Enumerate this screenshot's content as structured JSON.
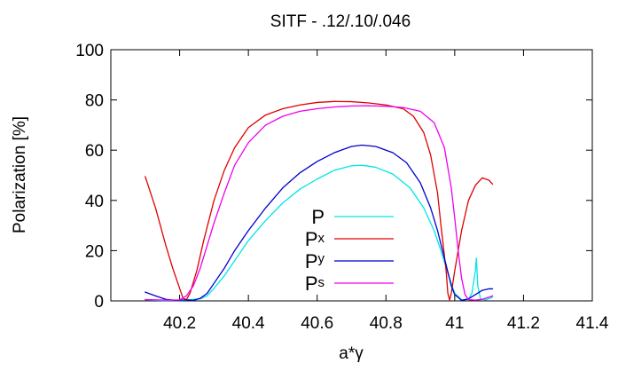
{
  "chart_data": {
    "type": "line",
    "title": "SITF - .12/.10/.046",
    "xlabel": "a*γ",
    "ylabel": "Polarization [%]",
    "xlim": [
      40.0,
      41.4
    ],
    "ylim": [
      0,
      100
    ],
    "x_ticks": [
      40.2,
      40.4,
      40.6,
      40.8,
      41,
      41.2,
      41.4
    ],
    "x_tick_labels": [
      "40.2",
      "40.4",
      "40.6",
      "40.8",
      "41",
      "41.2",
      "41.4"
    ],
    "y_ticks": [
      0,
      20,
      40,
      60,
      80,
      100
    ],
    "y_tick_labels": [
      "0",
      "20",
      "40",
      "60",
      "80",
      "100"
    ],
    "grid": false,
    "legend_position": "center",
    "series": [
      {
        "name": "P",
        "name_base": "P",
        "name_sub": "",
        "color": "#00e5e5",
        "points": [
          [
            40.1,
            0.4
          ],
          [
            40.12,
            0.3
          ],
          [
            40.15,
            0.2
          ],
          [
            40.18,
            0.2
          ],
          [
            40.21,
            0.2
          ],
          [
            40.24,
            0.6
          ],
          [
            40.26,
            0.8
          ],
          [
            40.28,
            2.0
          ],
          [
            40.3,
            5.0
          ],
          [
            40.33,
            10.0
          ],
          [
            40.36,
            16.0
          ],
          [
            40.4,
            24.0
          ],
          [
            40.45,
            32.0
          ],
          [
            40.5,
            39.0
          ],
          [
            40.55,
            44.5
          ],
          [
            40.6,
            48.5
          ],
          [
            40.65,
            52.0
          ],
          [
            40.7,
            53.8
          ],
          [
            40.73,
            54.0
          ],
          [
            40.77,
            53.2
          ],
          [
            40.82,
            50.5
          ],
          [
            40.87,
            45.0
          ],
          [
            40.91,
            37.0
          ],
          [
            40.94,
            28.0
          ],
          [
            40.96,
            20.0
          ],
          [
            40.98,
            11.0
          ],
          [
            41.0,
            3.0
          ],
          [
            41.02,
            0.4
          ],
          [
            41.04,
            0.6
          ],
          [
            41.05,
            3.0
          ],
          [
            41.06,
            12.0
          ],
          [
            41.063,
            17.0
          ],
          [
            41.067,
            6.0
          ],
          [
            41.075,
            0.8
          ],
          [
            41.09,
            0.4
          ],
          [
            41.11,
            1.5
          ]
        ]
      },
      {
        "name": "Px",
        "name_base": "P",
        "name_sub": "x",
        "color": "#e00000",
        "points": [
          [
            40.1,
            49.5
          ],
          [
            40.13,
            37.0
          ],
          [
            40.16,
            22.0
          ],
          [
            40.18,
            13.0
          ],
          [
            40.2,
            5.0
          ],
          [
            40.21,
            1.0
          ],
          [
            40.22,
            0.5
          ],
          [
            40.23,
            3.0
          ],
          [
            40.25,
            12.0
          ],
          [
            40.27,
            24.0
          ],
          [
            40.3,
            40.0
          ],
          [
            40.33,
            52.0
          ],
          [
            40.36,
            61.0
          ],
          [
            40.4,
            69.0
          ],
          [
            40.45,
            74.0
          ],
          [
            40.5,
            76.5
          ],
          [
            40.55,
            78.0
          ],
          [
            40.6,
            79.0
          ],
          [
            40.65,
            79.4
          ],
          [
            40.7,
            79.3
          ],
          [
            40.75,
            78.8
          ],
          [
            40.8,
            78.0
          ],
          [
            40.85,
            76.5
          ],
          [
            40.88,
            73.5
          ],
          [
            40.91,
            67.0
          ],
          [
            40.93,
            58.0
          ],
          [
            40.95,
            43.0
          ],
          [
            40.96,
            30.0
          ],
          [
            40.975,
            12.0
          ],
          [
            40.98,
            3.0
          ],
          [
            40.985,
            0.3
          ],
          [
            40.99,
            3.0
          ],
          [
            41.0,
            12.0
          ],
          [
            41.02,
            28.0
          ],
          [
            41.04,
            40.0
          ],
          [
            41.06,
            46.0
          ],
          [
            41.08,
            49.0
          ],
          [
            41.1,
            48.0
          ],
          [
            41.11,
            46.5
          ]
        ]
      },
      {
        "name": "Py",
        "name_base": "P",
        "name_sub": "y",
        "color": "#0000cc",
        "points": [
          [
            40.1,
            3.5
          ],
          [
            40.13,
            2.0
          ],
          [
            40.16,
            0.6
          ],
          [
            40.19,
            0.2
          ],
          [
            40.22,
            0.4
          ],
          [
            40.24,
            0.2
          ],
          [
            40.26,
            1.0
          ],
          [
            40.28,
            3.0
          ],
          [
            40.3,
            7.0
          ],
          [
            40.33,
            13.0
          ],
          [
            40.36,
            20.0
          ],
          [
            40.4,
            28.0
          ],
          [
            40.45,
            37.0
          ],
          [
            40.5,
            45.0
          ],
          [
            40.55,
            51.0
          ],
          [
            40.6,
            55.5
          ],
          [
            40.65,
            59.0
          ],
          [
            40.7,
            61.5
          ],
          [
            40.73,
            62.0
          ],
          [
            40.77,
            61.5
          ],
          [
            40.82,
            59.0
          ],
          [
            40.86,
            55.0
          ],
          [
            40.9,
            47.0
          ],
          [
            40.93,
            37.0
          ],
          [
            40.95,
            28.0
          ],
          [
            40.97,
            17.0
          ],
          [
            40.99,
            6.0
          ],
          [
            41.0,
            2.5
          ],
          [
            41.02,
            0.2
          ],
          [
            41.04,
            0.8
          ],
          [
            41.06,
            2.5
          ],
          [
            41.08,
            4.2
          ],
          [
            41.1,
            4.8
          ],
          [
            41.11,
            4.8
          ]
        ]
      },
      {
        "name": "Ps",
        "name_base": "P",
        "name_sub": "s",
        "color": "#ee00ee",
        "points": [
          [
            40.1,
            0.5
          ],
          [
            40.14,
            0.4
          ],
          [
            40.17,
            0.3
          ],
          [
            40.2,
            0.4
          ],
          [
            40.22,
            2.0
          ],
          [
            40.24,
            6.0
          ],
          [
            40.26,
            13.0
          ],
          [
            40.28,
            22.0
          ],
          [
            40.3,
            31.0
          ],
          [
            40.33,
            43.0
          ],
          [
            40.36,
            54.0
          ],
          [
            40.4,
            63.0
          ],
          [
            40.45,
            70.0
          ],
          [
            40.5,
            73.5
          ],
          [
            40.55,
            75.5
          ],
          [
            40.6,
            76.5
          ],
          [
            40.65,
            77.2
          ],
          [
            40.7,
            77.6
          ],
          [
            40.75,
            77.7
          ],
          [
            40.8,
            77.5
          ],
          [
            40.85,
            77.0
          ],
          [
            40.9,
            75.5
          ],
          [
            40.94,
            71.0
          ],
          [
            40.97,
            61.0
          ],
          [
            40.99,
            45.0
          ],
          [
            41.0,
            33.0
          ],
          [
            41.01,
            20.0
          ],
          [
            41.02,
            9.0
          ],
          [
            41.03,
            2.5
          ],
          [
            41.04,
            0.5
          ],
          [
            41.06,
            0.3
          ],
          [
            41.08,
            0.6
          ],
          [
            41.1,
            1.5
          ],
          [
            41.11,
            2.0
          ]
        ]
      }
    ]
  }
}
